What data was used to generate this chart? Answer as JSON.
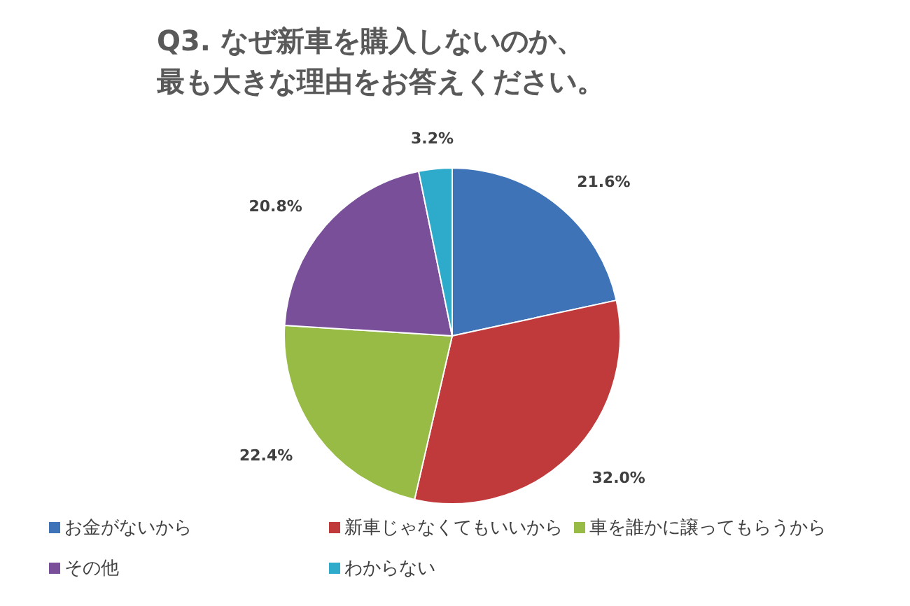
{
  "chart_data": {
    "type": "pie",
    "title": "Q3. なぜ新車を購入しないのか、最も大きな理由をお答えください。",
    "categories": [
      "お金がないから",
      "新車じゃなくてもいいから",
      "車を誰かに譲ってもらうから",
      "その他",
      "わからない"
    ],
    "values": [
      21.6,
      32.0,
      22.4,
      20.8,
      3.2
    ],
    "value_labels": [
      "21.6%",
      "32.0%",
      "22.4%",
      "20.8%",
      "3.2%"
    ],
    "colors": [
      "#3f73b8",
      "#c0393b",
      "#97bb45",
      "#7a4f9a",
      "#2eaacb"
    ],
    "legend": "bottom"
  }
}
